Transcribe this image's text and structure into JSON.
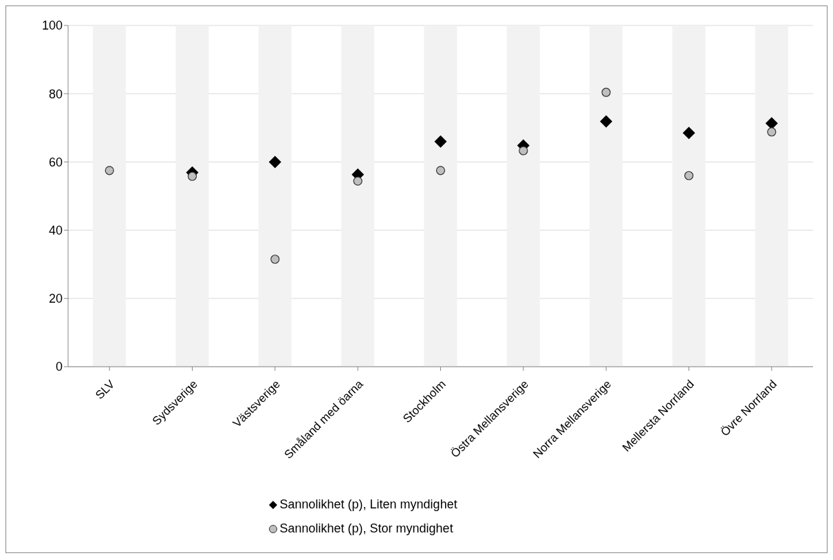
{
  "chart_data": {
    "type": "scatter",
    "categories": [
      "SLV",
      "Sydsverige",
      "Västsverige",
      "Småland med öarna",
      "Stockholm",
      "Östra Mellansverige",
      "Norra Mellansverige",
      "Mellersta Norrland",
      "Övre Norrland"
    ],
    "series": [
      {
        "type": "bar",
        "color": "#f2f2f2",
        "values": [
          100,
          100,
          100,
          100,
          100,
          100,
          100,
          100,
          100
        ]
      },
      {
        "name": "Sannolikhet (p), Liten myndighet",
        "color": "#000000",
        "marker": "diamond",
        "values": [
          null,
          56.9,
          60.0,
          56.3,
          66.0,
          64.8,
          71.9,
          68.5,
          71.3
        ]
      },
      {
        "name": "Sannolikhet (p), Stor myndighet",
        "color": "#bfbfbf",
        "marker": "circle",
        "values": [
          57.5,
          55.8,
          31.5,
          54.4,
          57.5,
          63.3,
          80.4,
          56.0,
          68.8
        ]
      }
    ],
    "ylim": [
      0,
      100
    ],
    "yticks": [
      0,
      20,
      40,
      60,
      80,
      100
    ],
    "grid": "y",
    "legend": "bottom"
  }
}
